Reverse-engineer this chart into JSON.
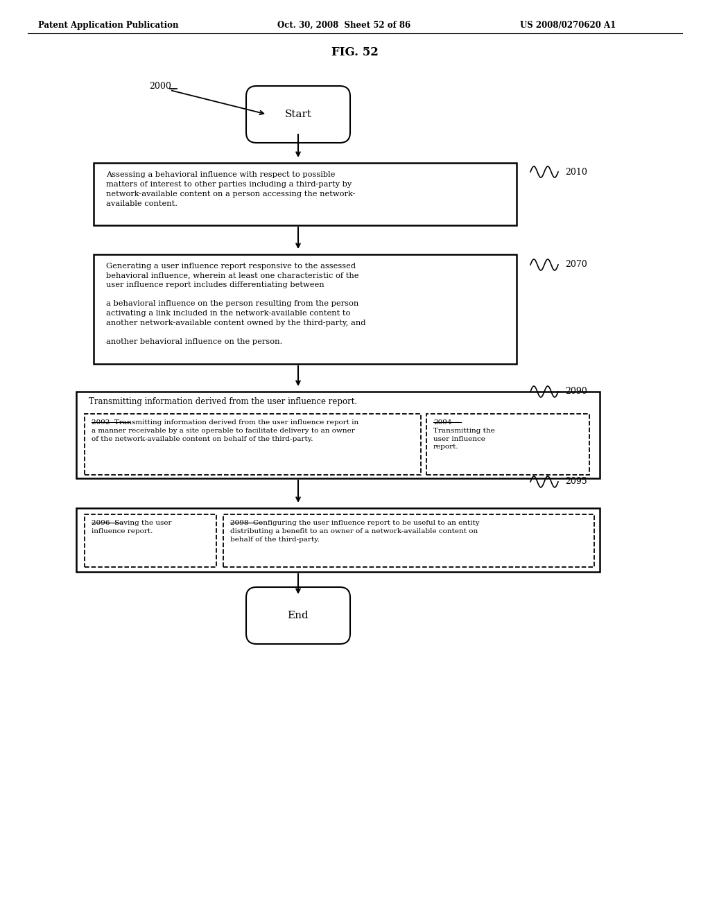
{
  "header_left": "Patent Application Publication",
  "header_mid": "Oct. 30, 2008  Sheet 52 of 86",
  "header_right": "US 2008/0270620 A1",
  "fig_title": "FIG. 52",
  "start_label": "2000",
  "end_label": "",
  "node_start": "Start",
  "node_end": "End",
  "label_2010": "2010",
  "label_2070": "2070",
  "label_2090": "2090",
  "label_2092": "2092",
  "label_2094": "2094",
  "label_2095": "2095",
  "label_2096": "2096",
  "label_2098": "2098",
  "text_2010": "Assessing a behavioral influence with respect to possible\nmatters of interest to other parties including a third-party by\nnetwork-available content on a person accessing the network-\navailable content.",
  "text_2070": "Generating a user influence report responsive to the assessed\nbehavioral influence, wherein at least one characteristic of the\nuser influence report includes differentiating between\n\na behavioral influence on the person resulting from the person\nactivating a link included in the network-available content to\nanother network-available content owned by the third-party, and\n\nanother behavioral influence on the person.",
  "text_2090": "Transmitting information derived from the user influence report.",
  "text_2092": "2092  Transmitting information derived from the user influence report in\na manner receivable by a site operable to facilitate delivery to an owner\nof the network-available content on behalf of the third-party.",
  "text_2094": "2094\nTransmitting the\nuser influence\nreport.",
  "text_2096": "2096  Saving the user\ninfluence report.",
  "text_2098": "2098  Configuring the user influence report to be useful to an entity\ndistributing a benefit to an owner of a network-available content on\nbehalf of the third-party.",
  "bg_color": "#ffffff",
  "text_color": "#000000",
  "box_edge_color": "#000000"
}
